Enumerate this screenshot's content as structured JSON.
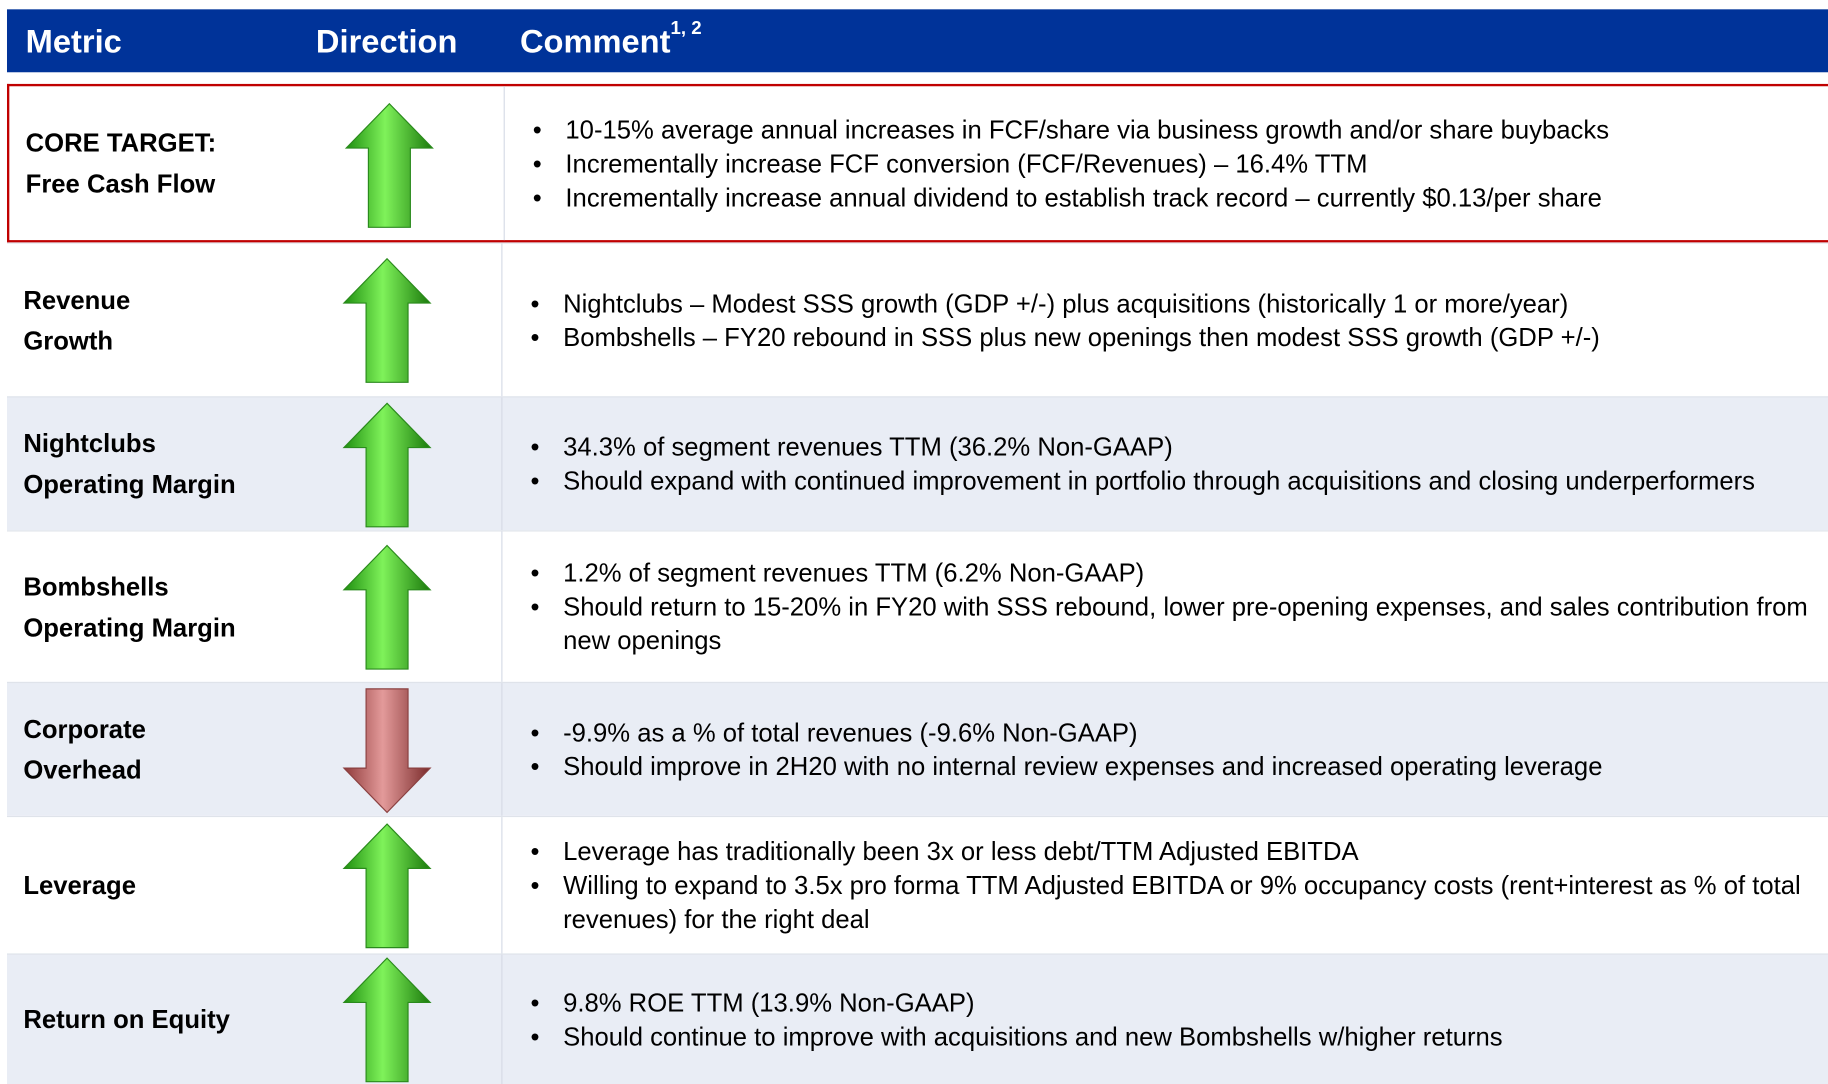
{
  "header": {
    "metric": "Metric",
    "direction": "Direction",
    "comment": "Comment",
    "comment_footnotes": "1, 2"
  },
  "rows": [
    {
      "metric": [
        "CORE TARGET:",
        "Free Cash Flow"
      ],
      "direction": "up",
      "highlight": true,
      "comments": [
        "10-15% average annual increases in FCF/share via business growth and/or share buybacks",
        "Incrementally increase FCF conversion (FCF/Revenues) – 16.4% TTM",
        "Incrementally increase annual dividend to establish track record – currently $0.13/per share"
      ]
    },
    {
      "metric": [
        "Revenue",
        "Growth"
      ],
      "direction": "up",
      "comments": [
        "Nightclubs – Modest SSS growth (GDP +/-) plus acquisitions (historically 1 or more/year)",
        "Bombshells – FY20 rebound in SSS plus new openings then modest SSS growth (GDP +/-)"
      ]
    },
    {
      "metric": [
        "Nightclubs",
        "Operating Margin"
      ],
      "direction": "up",
      "comments": [
        "34.3% of segment revenues TTM (36.2% Non-GAAP)",
        "Should expand with continued improvement in portfolio through acquisitions and closing underperformers"
      ]
    },
    {
      "metric": [
        "Bombshells",
        "Operating Margin"
      ],
      "direction": "up",
      "comments": [
        "1.2% of segment revenues TTM (6.2% Non-GAAP)",
        "Should return to 15-20% in FY20 with SSS rebound, lower pre-opening expenses, and sales contribution from new openings"
      ]
    },
    {
      "metric": [
        "Corporate",
        "Overhead"
      ],
      "direction": "down",
      "comments": [
        "-9.9% as a % of total revenues (-9.6% Non-GAAP)",
        "Should improve in 2H20 with no internal review expenses and increased operating leverage"
      ]
    },
    {
      "metric": [
        "Leverage"
      ],
      "direction": "up",
      "comments": [
        "Leverage has traditionally been 3x or less debt/TTM Adjusted EBITDA",
        "Willing to expand to 3.5x pro forma TTM Adjusted EBITDA or 9% occupancy costs (rent+interest as % of total revenues) for the right deal"
      ]
    },
    {
      "metric": [
        "Return on Equity"
      ],
      "direction": "up",
      "comments": [
        "9.8% ROE TTM (13.9% Non-GAAP)",
        "Should continue to improve with acquisitions and new Bombshells w/higher returns"
      ]
    }
  ]
}
